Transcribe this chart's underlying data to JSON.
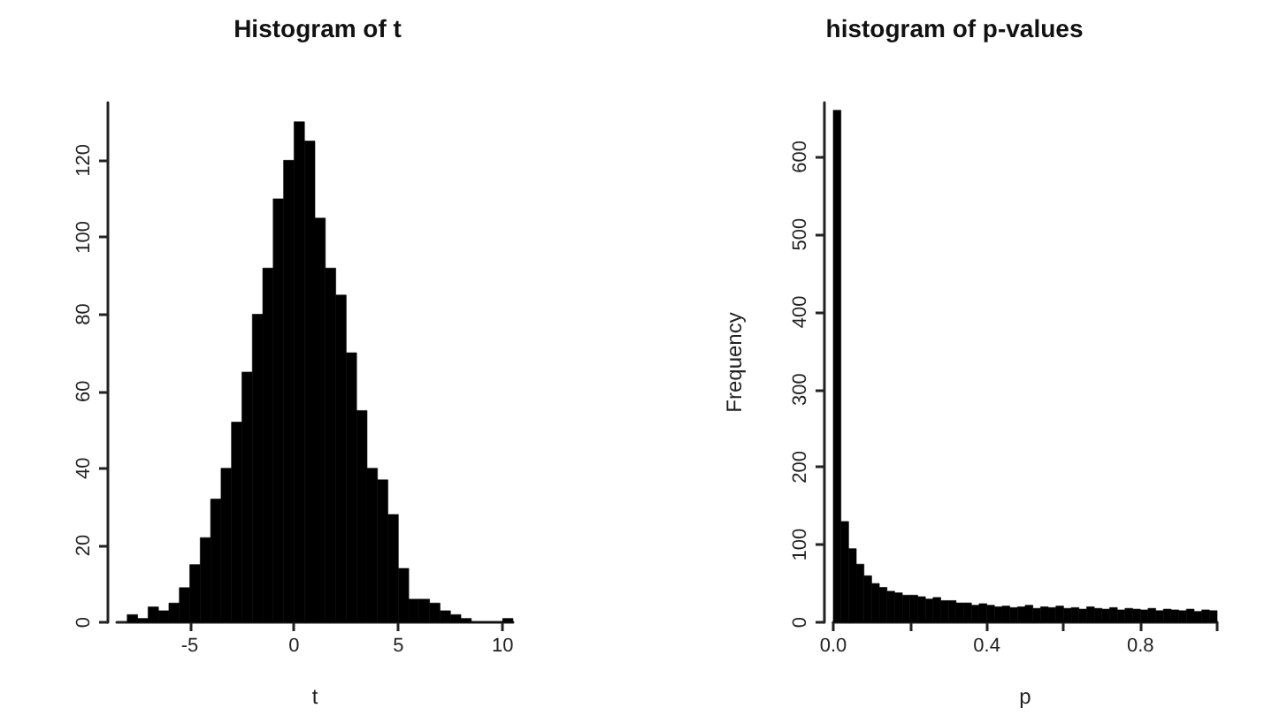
{
  "chart_data": [
    {
      "type": "histogram",
      "title": "Histogram of t",
      "xlabel": "t",
      "color": "#000000",
      "grid": false,
      "bins": [
        -8,
        -7.5,
        -7,
        -6.5,
        -6,
        -5.5,
        -5,
        -4.5,
        -4,
        -3.5,
        -3,
        -2.5,
        -2,
        -1.5,
        -1,
        -0.5,
        0,
        0.5,
        1,
        1.5,
        2,
        2.5,
        3,
        3.5,
        4,
        4.5,
        5,
        5.5,
        6,
        6.5,
        7,
        7.5,
        8,
        8.5,
        9,
        9.5,
        10,
        10.5
      ],
      "values": [
        2,
        1,
        4,
        3,
        5,
        9,
        15,
        22,
        32,
        40,
        52,
        65,
        80,
        92,
        110,
        120,
        130,
        125,
        105,
        92,
        85,
        70,
        55,
        40,
        37,
        28,
        14,
        6,
        6,
        5,
        3,
        2,
        1,
        0,
        0,
        0,
        1
      ],
      "xlim": [
        -8.5,
        10.5
      ],
      "xticks": [
        -5,
        0,
        5,
        10
      ],
      "ylim": [
        0,
        135
      ],
      "yticks": [
        0,
        20,
        40,
        60,
        80,
        100,
        120
      ]
    },
    {
      "type": "histogram",
      "title": "histogram of p-values",
      "xlabel": "p",
      "ylabel": "Frequency",
      "color": "#000000",
      "grid": false,
      "bins": [
        0,
        0.02,
        0.04,
        0.06,
        0.08,
        0.1,
        0.12,
        0.14,
        0.16,
        0.18,
        0.2,
        0.22,
        0.24,
        0.26,
        0.28,
        0.3,
        0.32,
        0.34,
        0.36,
        0.38,
        0.4,
        0.42,
        0.44,
        0.46,
        0.48,
        0.5,
        0.52,
        0.54,
        0.56,
        0.58,
        0.6,
        0.62,
        0.64,
        0.66,
        0.68,
        0.7,
        0.72,
        0.74,
        0.76,
        0.78,
        0.8,
        0.82,
        0.84,
        0.86,
        0.88,
        0.9,
        0.92,
        0.94,
        0.96,
        0.98,
        1
      ],
      "values": [
        660,
        130,
        95,
        75,
        60,
        50,
        45,
        40,
        38,
        35,
        35,
        33,
        30,
        32,
        28,
        28,
        25,
        25,
        22,
        24,
        22,
        20,
        21,
        19,
        20,
        22,
        18,
        20,
        19,
        21,
        18,
        19,
        17,
        20,
        18,
        17,
        19,
        16,
        18,
        17,
        16,
        18,
        15,
        17,
        16,
        15,
        17,
        14,
        16,
        15
      ],
      "xlim": [
        0,
        1
      ],
      "xticks": [
        {
          "value": 0,
          "label": "0.0"
        },
        {
          "value": 0.2,
          "label": null
        },
        0.4,
        {
          "value": 0.6,
          "label": null
        },
        0.8,
        {
          "value": 1,
          "label": null
        }
      ],
      "ylim": [
        0,
        670
      ],
      "yticks": [
        0,
        100,
        200,
        300,
        400,
        500,
        600
      ]
    }
  ]
}
